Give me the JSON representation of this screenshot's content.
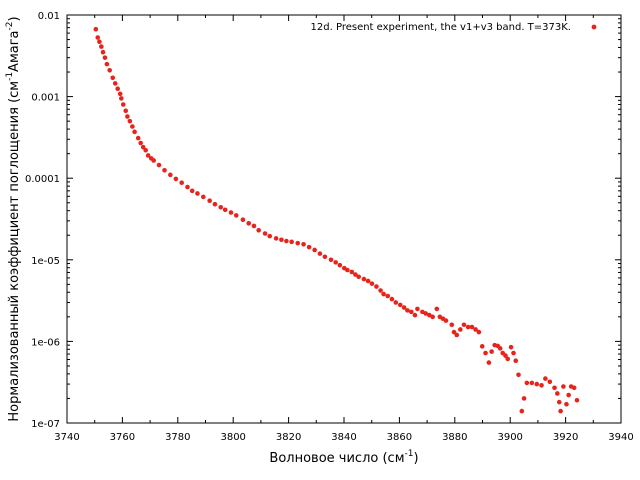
{
  "chart_data": {
    "type": "scatter",
    "xlabel": "Волновое число (см",
    "xlabel_sup": "-1",
    "xlabel_tail": ")",
    "ylabel_a": "Нормализованный коэффициент поглощения (см",
    "ylabel_sup1": "-1",
    "ylabel_b": "Амага",
    "ylabel_sup2": "-2",
    "ylabel_c": ")",
    "xlim": [
      3740,
      3940
    ],
    "ylim": [
      1e-07,
      0.01
    ],
    "yscale": "log",
    "grid": false,
    "legend_position": "top-right",
    "xticks": [
      3740,
      3760,
      3780,
      3800,
      3820,
      3840,
      3860,
      3880,
      3900,
      3920,
      3940
    ],
    "xtick_labels": [
      "3740",
      "3760",
      "3780",
      "3800",
      "3820",
      "3840",
      "3860",
      "3880",
      "3900",
      "3920",
      "3940"
    ],
    "yticks": [
      1e-07,
      1e-06,
      1e-05,
      0.0001,
      0.001,
      0.01
    ],
    "ytick_labels": [
      "1e-07",
      "1e-06",
      "1e-05",
      "0.0001",
      "0.001",
      "0.01"
    ],
    "series": [
      {
        "name": "12d. Present experiment, the v1+v3 band. T=373K.",
        "color": "#e8231c",
        "x": [
          3750.4,
          3751.1,
          3751.7,
          3752.4,
          3753.0,
          3753.7,
          3754.4,
          3755.4,
          3756.5,
          3757.4,
          3758.3,
          3759.2,
          3759.6,
          3760.3,
          3761.2,
          3761.8,
          3762.7,
          3763.6,
          3764.4,
          3765.7,
          3766.6,
          3767.5,
          3768.4,
          3769.3,
          3770.4,
          3771.3,
          3773.2,
          3775.2,
          3777.3,
          3779.3,
          3781.4,
          3783.5,
          3785.2,
          3787.1,
          3789.2,
          3791.5,
          3793.4,
          3795.5,
          3797.1,
          3799.2,
          3801.1,
          3803.5,
          3805.6,
          3807.5,
          3809.2,
          3811.5,
          3813.2,
          3815.5,
          3817.4,
          3819.2,
          3821.1,
          3823.3,
          3825.4,
          3827.4,
          3829.4,
          3831.3,
          3833.1,
          3835.3,
          3837.0,
          3838.5,
          3840.1,
          3841.2,
          3842.8,
          3844.1,
          3845.3,
          3847.2,
          3848.7,
          3850.1,
          3851.7,
          3853.2,
          3854.3,
          3855.8,
          3857.3,
          3858.7,
          3860.3,
          3861.7,
          3862.9,
          3864.3,
          3865.6,
          3866.5,
          3868.3,
          3869.5,
          3870.8,
          3872.0,
          3873.5,
          3874.6,
          3875.7,
          3876.8,
          3878.9,
          3879.7,
          3880.7,
          3882.0,
          3883.3,
          3884.8,
          3886.2,
          3887.5,
          3888.7,
          3889.9,
          3891.1,
          3892.3,
          3893.3,
          3894.4,
          3895.5,
          3896.4,
          3897.3,
          3898.3,
          3899.1,
          3900.3,
          3901.2,
          3902.0,
          3903.0,
          3904.2,
          3905.0,
          3906.0,
          3907.8,
          3909.6,
          3911.3,
          3912.7,
          3914.3,
          3916.0,
          3917.0,
          3917.7,
          3918.2,
          3919.2,
          3920.3,
          3921.1,
          3922.0,
          3923.1,
          3924.1
        ],
        "y": [
          0.0067,
          0.0053,
          0.0047,
          0.0041,
          0.0035,
          0.003,
          0.0025,
          0.0021,
          0.0017,
          0.00145,
          0.00125,
          0.00108,
          0.00095,
          0.0008,
          0.00067,
          0.00057,
          0.0005,
          0.00043,
          0.00037,
          0.00031,
          0.00027,
          0.00024,
          0.00022,
          0.00019,
          0.000175,
          0.000165,
          0.000145,
          0.000125,
          0.00011,
          9.8e-05,
          8.8e-05,
          7.8e-05,
          7e-05,
          6.5e-05,
          5.9e-05,
          5.3e-05,
          4.8e-05,
          4.4e-05,
          4.1e-05,
          3.8e-05,
          3.5e-05,
          3.1e-05,
          2.8e-05,
          2.6e-05,
          2.3e-05,
          2.1e-05,
          1.95e-05,
          1.83e-05,
          1.76e-05,
          1.7e-05,
          1.66e-05,
          1.6e-05,
          1.55e-05,
          1.43e-05,
          1.32e-05,
          1.19e-05,
          1.09e-05,
          1e-05,
          9.3e-06,
          8.6e-06,
          7.9e-06,
          7.5e-06,
          7.1e-06,
          6.6e-06,
          6.2e-06,
          5.8e-06,
          5.5e-06,
          5.1e-06,
          4.7e-06,
          4.2e-06,
          3.8e-06,
          3.6e-06,
          3.3e-06,
          3e-06,
          2.8e-06,
          2.6e-06,
          2.4e-06,
          2.3e-06,
          2.1e-06,
          2.5e-06,
          2.3e-06,
          2.2e-06,
          2.1e-06,
          2e-06,
          2.5e-06,
          2e-06,
          1.9e-06,
          1.8e-06,
          1.6e-06,
          1.3e-06,
          1.2e-06,
          1.4e-06,
          1.6e-06,
          1.5e-06,
          1.5e-06,
          1.4e-06,
          1.3e-06,
          8.7e-07,
          7.2e-07,
          5.5e-07,
          7.5e-07,
          9e-07,
          8.8e-07,
          8.2e-07,
          7.2e-07,
          6.7e-07,
          6.1e-07,
          8.5e-07,
          7.2e-07,
          5.8e-07,
          3.9e-07,
          1.4e-07,
          2e-07,
          3.1e-07,
          3.1e-07,
          3e-07,
          2.9e-07,
          3.5e-07,
          3.2e-07,
          2.7e-07,
          2.3e-07,
          1.8e-07,
          1.4e-07,
          2.8e-07,
          1.7e-07,
          2.2e-07,
          2.8e-07,
          2.7e-07,
          1.9e-07
        ]
      }
    ]
  }
}
